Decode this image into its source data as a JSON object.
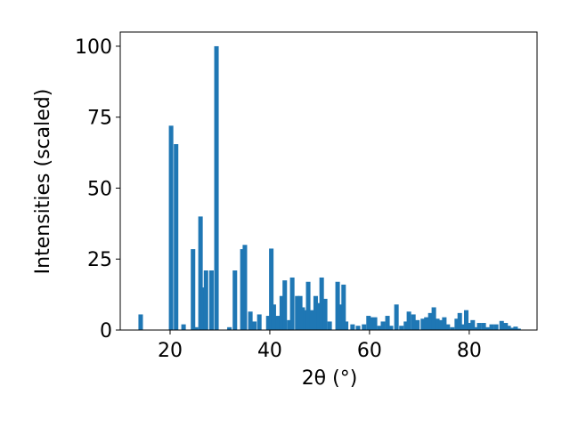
{
  "chart_data": {
    "type": "bar",
    "xlabel": "2θ (°)",
    "ylabel": "Intensities (scaled)",
    "x": [
      14.1,
      20.2,
      21.2,
      22.7,
      24.6,
      25.2,
      26.1,
      26.7,
      27.2,
      28.3,
      29.3,
      31.9,
      33.0,
      34.5,
      35.0,
      36.1,
      36.9,
      37.9,
      39.7,
      40.3,
      40.8,
      41.6,
      42.4,
      43.0,
      43.9,
      44.5,
      45.5,
      46.1,
      46.6,
      47.1,
      47.7,
      48.4,
      49.2,
      49.8,
      50.4,
      51.1,
      52.0,
      53.6,
      54.0,
      54.8,
      55.3,
      56.6,
      57.7,
      58.9,
      59.8,
      60.3,
      61.1,
      62.0,
      62.7,
      63.6,
      64.3,
      65.4,
      66.4,
      67.3,
      67.9,
      68.8,
      69.6,
      70.7,
      71.4,
      72.2,
      72.9,
      73.6,
      74.3,
      75.0,
      75.7,
      76.6,
      77.5,
      78.1,
      78.8,
      79.4,
      80.0,
      80.7,
      81.3,
      82.0,
      82.9,
      83.6,
      84.5,
      85.4,
      86.5,
      87.3,
      87.9,
      88.6,
      89.3,
      89.9
    ],
    "values": [
      5.5,
      72,
      65.5,
      2,
      28.5,
      1,
      40,
      15,
      21,
      21,
      100,
      1,
      21,
      28.5,
      30,
      6.5,
      3,
      5.5,
      5,
      28.7,
      9,
      5,
      12,
      17.5,
      3.5,
      18.5,
      12,
      12,
      8,
      7,
      17,
      7,
      12,
      9.5,
      18.5,
      11,
      3,
      17,
      9,
      16,
      3,
      2,
      1.5,
      2,
      5,
      4.5,
      4.5,
      1.5,
      3,
      5,
      1.5,
      9,
      1.5,
      3,
      6.5,
      5.5,
      3.5,
      4,
      4.5,
      6,
      8,
      4,
      3.5,
      4.5,
      2,
      1,
      4,
      6,
      2,
      7,
      2.5,
      3.5,
      1,
      2.5,
      2.5,
      1,
      2,
      2,
      3.2,
      2.5,
      1.5,
      0.8,
      1.2,
      0.5
    ],
    "color": "#1f77b4",
    "xlim": [
      10,
      93.6
    ],
    "ylim": [
      0,
      105
    ],
    "xticks": [
      20,
      40,
      60,
      80
    ],
    "yticks": [
      0,
      25,
      50,
      75,
      100
    ]
  }
}
